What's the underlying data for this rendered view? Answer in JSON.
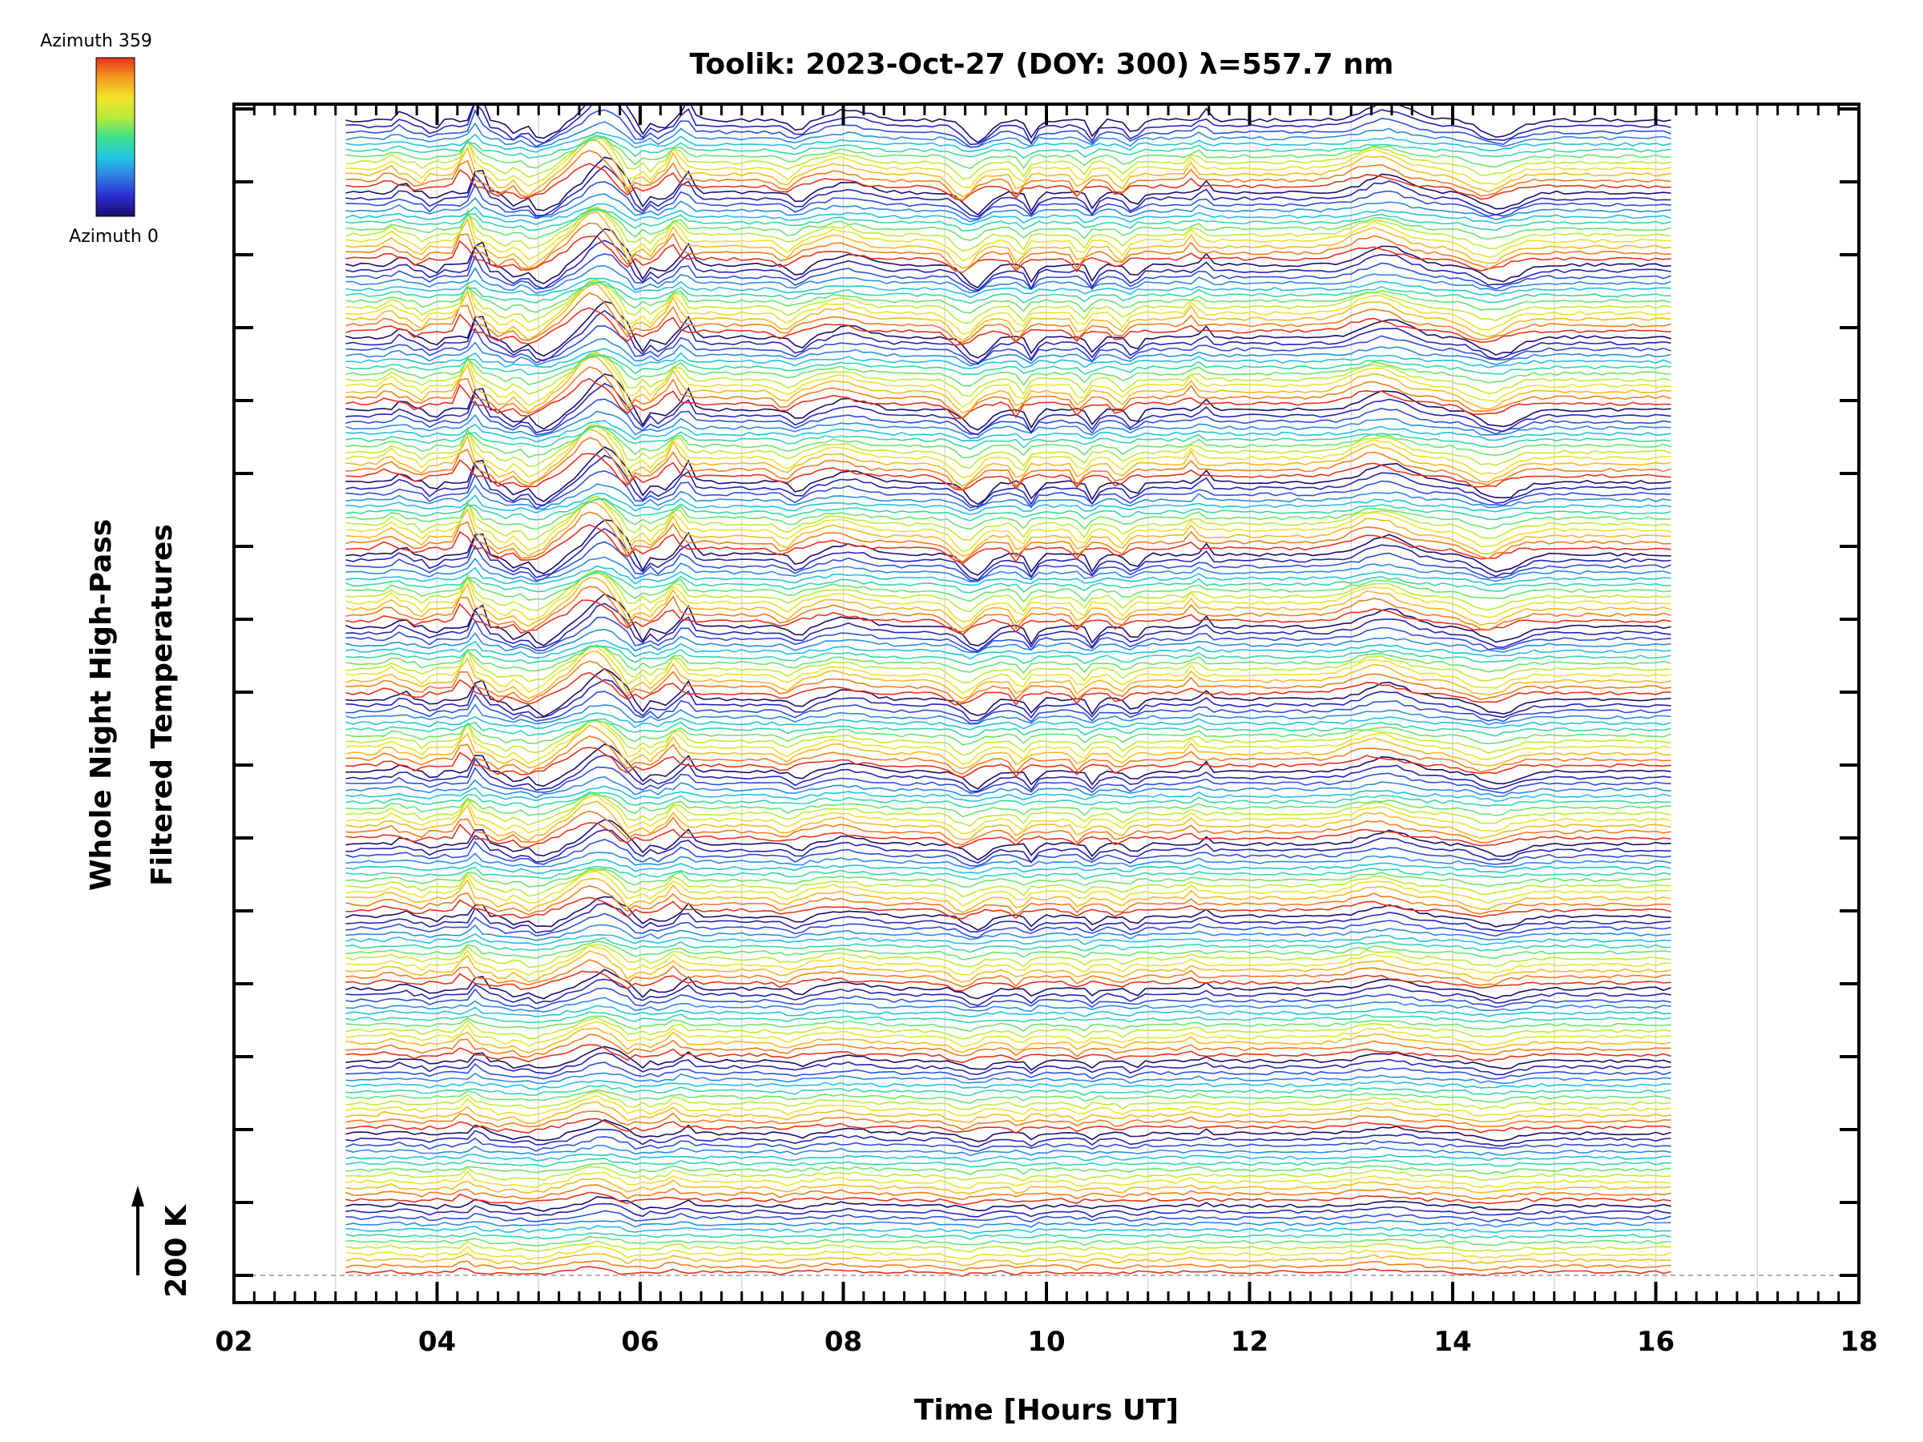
{
  "chart_data": {
    "type": "line",
    "title": "Toolik: 2023-Oct-27 (DOY: 300) λ=557.7 nm",
    "xlabel": "Time [Hours UT]",
    "ylabel_line1": "Whole Night High-Pass",
    "ylabel_line2": "Filtered Temperatures",
    "scale_label": "200 K",
    "xlim": [
      2,
      18
    ],
    "x_ticks": [
      "02",
      "04",
      "06",
      "08",
      "10",
      "12",
      "14",
      "16",
      "18"
    ],
    "data_range_hours": [
      3.1,
      16.15
    ],
    "y_scale_kelvin": 200,
    "num_bands": 16,
    "lines_per_band": 12,
    "colorbar": {
      "label_top": "Azimuth 359",
      "label_bottom": "Azimuth 0",
      "colormap": "rainbow",
      "stops": [
        "#1a0d6e",
        "#2b2bd0",
        "#2f7de6",
        "#22c8e0",
        "#40e08a",
        "#b8ec3a",
        "#f5e12a",
        "#f59a1c",
        "#e8321c"
      ]
    },
    "grid": true,
    "annotation_arrow": "up"
  }
}
